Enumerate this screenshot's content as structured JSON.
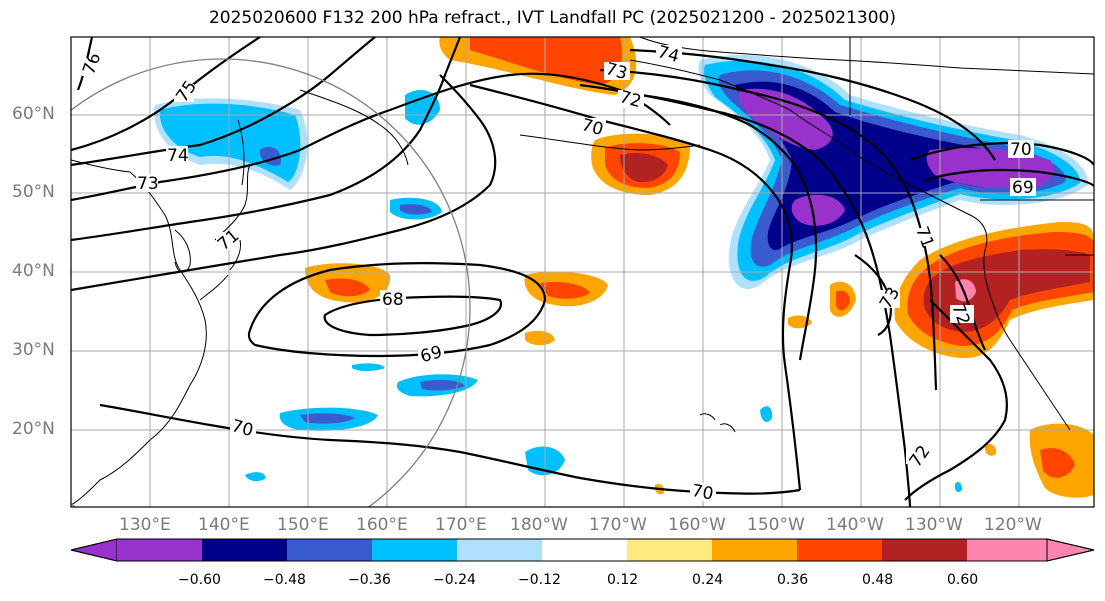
{
  "title": "2025020600 F132 200 hPa refract., IVT Landfall PC (2025021200 - 2025021300)",
  "lat_labels": [
    "60°N",
    "50°N",
    "40°N",
    "30°N",
    "20°N"
  ],
  "lon_labels": [
    "130°E",
    "140°E",
    "150°E",
    "160°E",
    "170°E",
    "180°W",
    "170°W",
    "160°W",
    "150°W",
    "140°W",
    "130°W",
    "120°W"
  ],
  "contour_labels": [
    "76",
    "75",
    "74",
    "73",
    "71",
    "68",
    "69",
    "70",
    "74",
    "73",
    "72",
    "70",
    "71",
    "70",
    "69",
    "73",
    "72",
    "72",
    "70"
  ],
  "colorbar": {
    "colors": [
      "#9932cc",
      "#00008b",
      "#3a5bd0",
      "#00bfff",
      "#b0e0ff",
      "#ffffff",
      "#ffea80",
      "#ffa500",
      "#ff4500",
      "#b22222",
      "#ff85b0"
    ],
    "tick_labels": [
      "−0.60",
      "−0.48",
      "−0.36",
      "−0.24",
      "−0.12",
      "0.12",
      "0.24",
      "0.36",
      "0.48",
      "0.60"
    ]
  }
}
